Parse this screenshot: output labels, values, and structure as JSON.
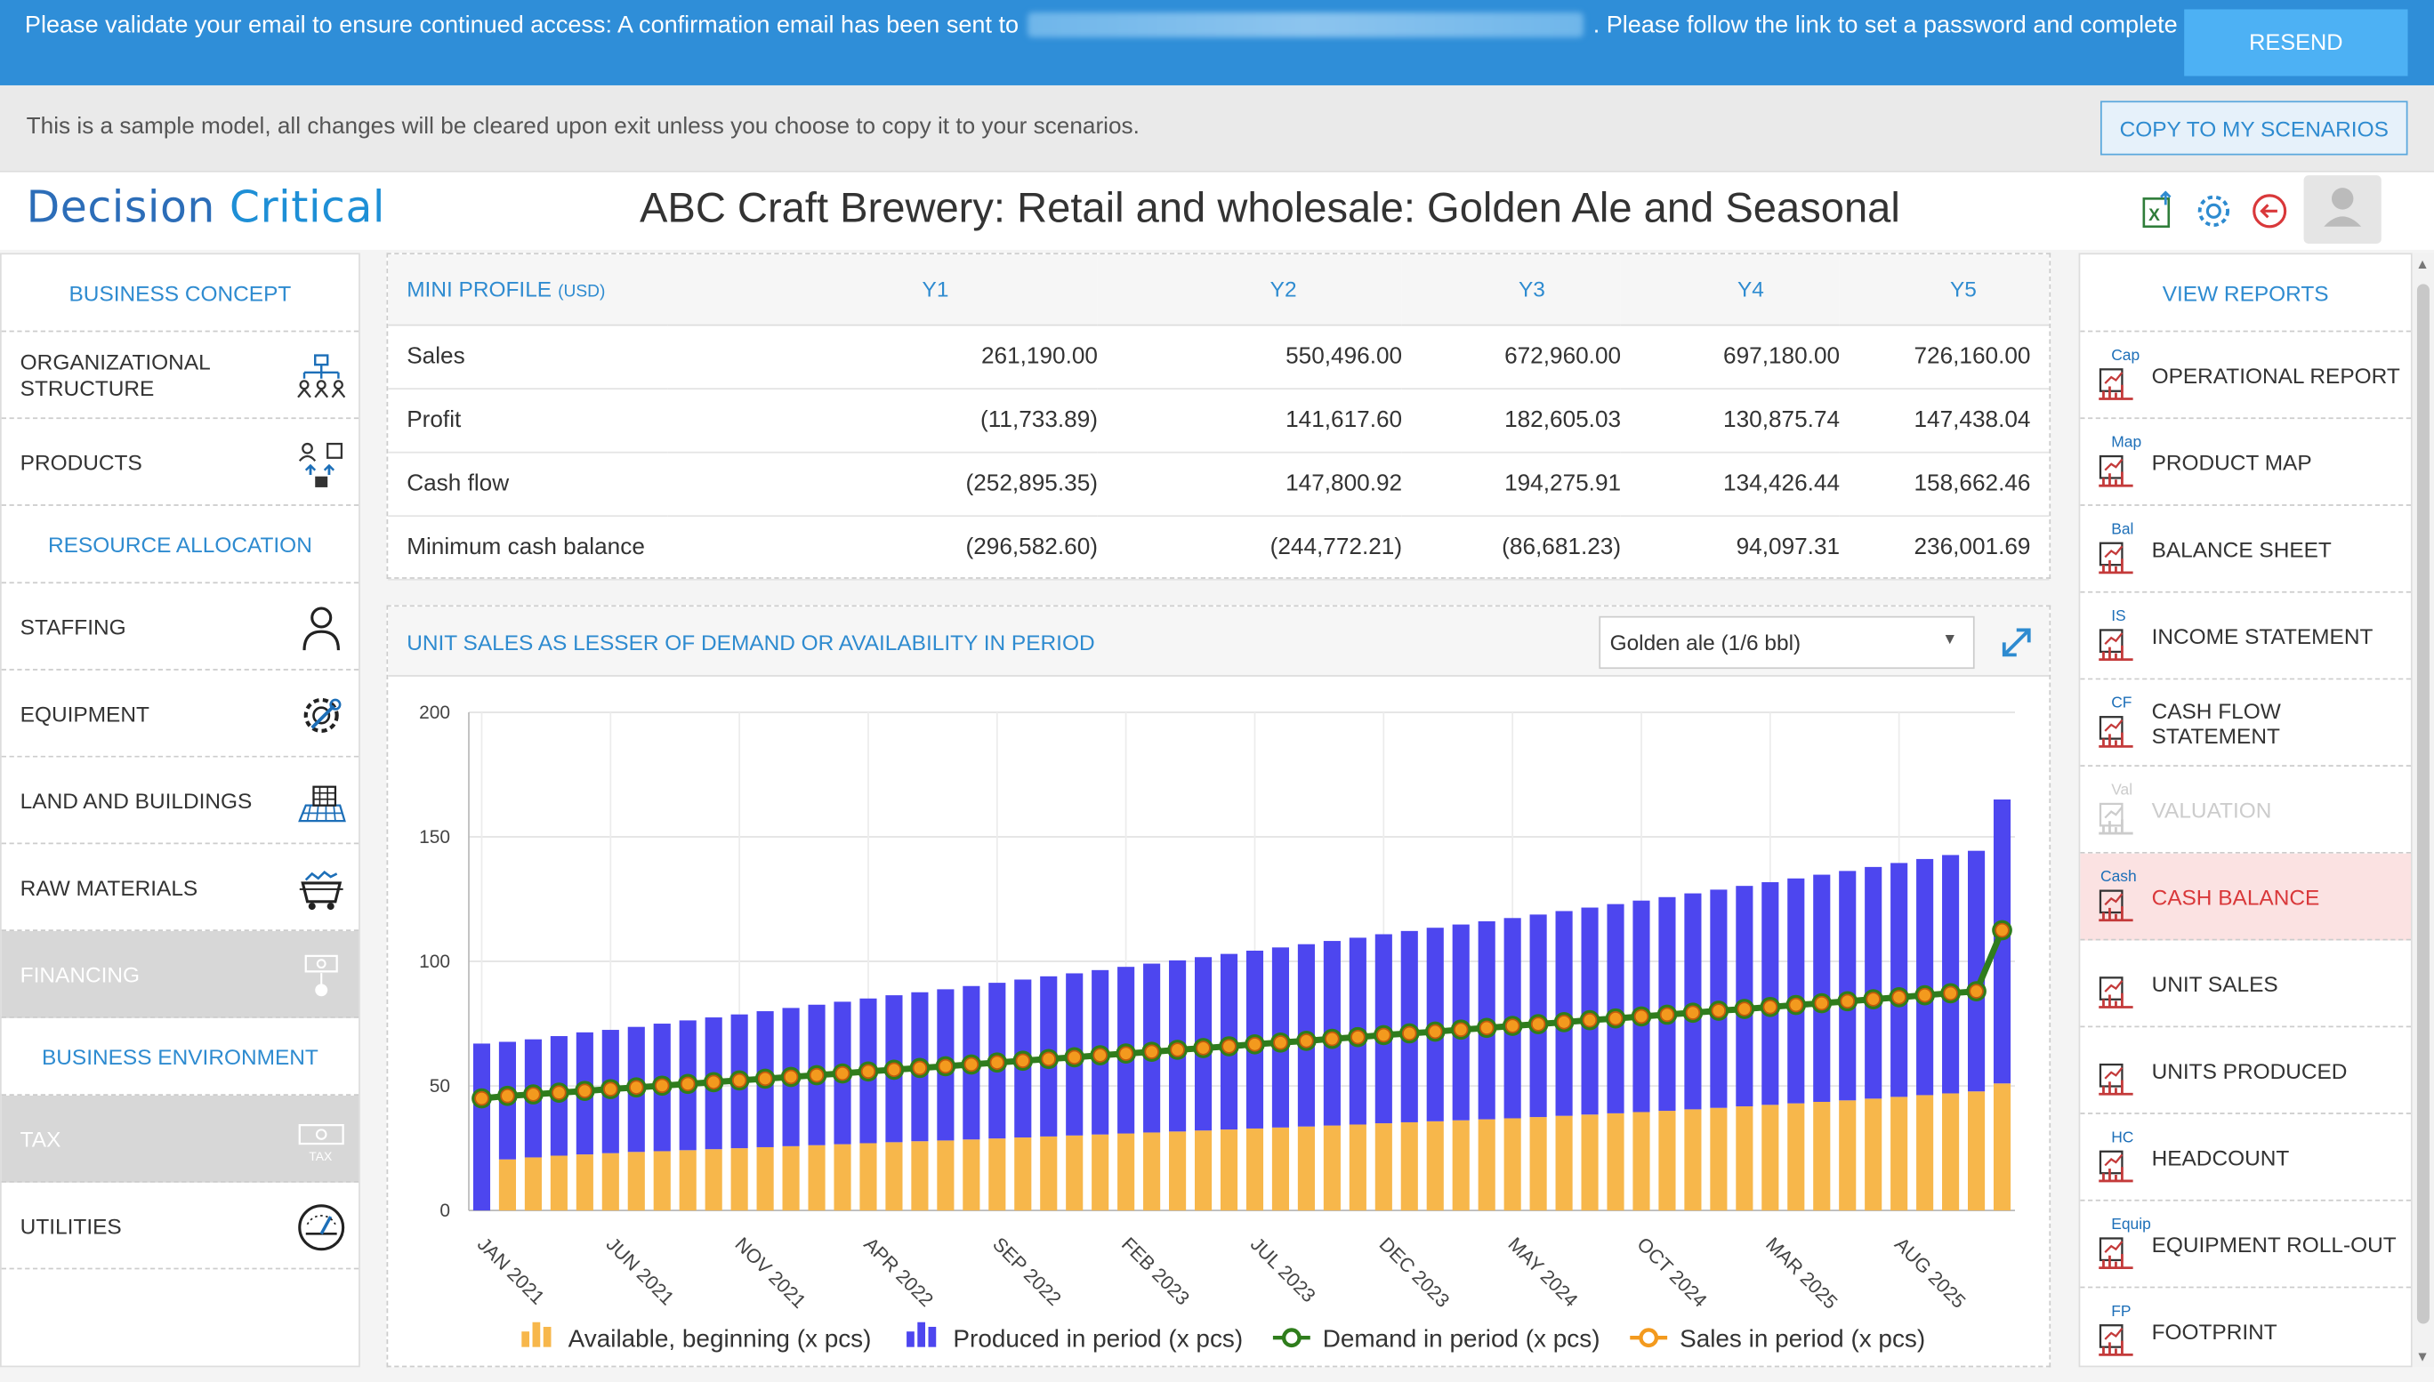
{
  "banner": {
    "text_before": "Please validate your email to ensure continued access: A confirmation email has been sent to",
    "text_after": ". Please follow the link to set a password and complete registration.",
    "resend_label": "RESEND"
  },
  "sample_bar": {
    "text": "This is a sample model, all changes will be cleared upon exit unless you choose to copy it to your scenarios.",
    "copy_label": "COPY TO MY SCENARIOS"
  },
  "header": {
    "logo_part1": "Decision",
    "logo_part2": "Critical",
    "title": "ABC Craft Brewery: Retail and wholesale: Golden Ale and Seasonal",
    "icons": [
      "excel-export-icon",
      "settings-gear-icon",
      "back-arrow-icon",
      "user-avatar-icon"
    ]
  },
  "left_nav": {
    "business_concept": "BUSINESS CONCEPT",
    "organizational_structure": "ORGANIZATIONAL STRUCTURE",
    "products": "PRODUCTS",
    "resource_allocation": "RESOURCE ALLOCATION",
    "staffing": "STAFFING",
    "equipment": "EQUIPMENT",
    "land_buildings": "LAND AND BUILDINGS",
    "raw_materials": "RAW MATERIALS",
    "financing": "FINANCING",
    "business_environment": "BUSINESS ENVIRONMENT",
    "tax": "TAX",
    "tax_icon_text": "TAX",
    "utilities": "UTILITIES"
  },
  "mini_profile": {
    "title": "MINI PROFILE",
    "currency": "(USD)",
    "years": [
      "Y1",
      "Y2",
      "Y3",
      "Y4",
      "Y5"
    ],
    "rows": [
      {
        "label": "Sales",
        "values": [
          "261,190.00",
          "550,496.00",
          "672,960.00",
          "697,180.00",
          "726,160.00"
        ]
      },
      {
        "label": "Profit",
        "values": [
          "(11,733.89)",
          "141,617.60",
          "182,605.03",
          "130,875.74",
          "147,438.04"
        ]
      },
      {
        "label": "Cash flow",
        "values": [
          "(252,895.35)",
          "147,800.92",
          "194,275.91",
          "134,426.44",
          "158,662.46"
        ]
      },
      {
        "label": "Minimum cash balance",
        "values": [
          "(296,582.60)",
          "(244,772.21)",
          "(86,681.23)",
          "94,097.31",
          "236,001.69"
        ]
      }
    ]
  },
  "chart_panel": {
    "title": "UNIT SALES AS LESSER OF DEMAND OR AVAILABILITY IN PERIOD",
    "product_select": "Golden ale (1/6 bbl)"
  },
  "chart_data": {
    "type": "bar",
    "stacked": true,
    "months": 60,
    "start": "JAN 2021",
    "tick_labels": [
      "JAN 2021",
      "JUN 2021",
      "NOV 2021",
      "APR 2022",
      "SEP 2022",
      "FEB 2023",
      "JUL 2023",
      "DEC 2023",
      "MAY 2024",
      "OCT 2024",
      "MAR 2025",
      "AUG 2025"
    ],
    "ylim": [
      0,
      200
    ],
    "yticks": [
      0,
      50,
      100,
      150,
      200
    ],
    "grid": true,
    "legend_position": "bottom",
    "series": [
      {
        "name": "Available, beginning (x pcs)",
        "kind": "bar",
        "color": "#f7b74b",
        "values": [
          0,
          20.5,
          21.3,
          22.0,
          22.5,
          23.0,
          23.5,
          23.8,
          24.2,
          24.6,
          25.0,
          25.4,
          25.8,
          26.2,
          26.6,
          27.0,
          27.4,
          27.8,
          28.1,
          28.5,
          28.9,
          29.3,
          29.7,
          30.1,
          30.5,
          30.9,
          31.3,
          31.7,
          32.1,
          32.5,
          32.9,
          33.3,
          33.7,
          34.1,
          34.5,
          35.0,
          35.4,
          35.8,
          36.2,
          36.6,
          37.0,
          37.5,
          38.0,
          38.5,
          39.0,
          39.5,
          40.0,
          40.6,
          41.2,
          41.8,
          42.4,
          43.0,
          43.6,
          44.2,
          44.9,
          45.6,
          46.3,
          47.0,
          47.8,
          51.0
        ]
      },
      {
        "name": "Produced in period (x pcs)",
        "kind": "bar",
        "color": "#4d46ef",
        "values": [
          67.0,
          47.2,
          47.4,
          48.0,
          49.0,
          49.5,
          50.2,
          51.2,
          52.1,
          52.9,
          53.7,
          54.6,
          55.5,
          56.4,
          57.2,
          58.1,
          59.0,
          59.8,
          60.7,
          61.6,
          62.5,
          63.4,
          64.3,
          65.1,
          66.0,
          66.9,
          67.8,
          68.7,
          69.6,
          70.5,
          71.4,
          72.3,
          73.2,
          74.1,
          75.0,
          75.9,
          76.8,
          77.7,
          78.6,
          79.5,
          80.4,
          81.3,
          82.2,
          83.1,
          84.0,
          84.9,
          85.8,
          86.7,
          87.6,
          88.5,
          89.4,
          90.3,
          91.2,
          92.1,
          93.0,
          93.9,
          94.8,
          95.7,
          96.6,
          114.0
        ]
      },
      {
        "name": "Demand in period (x pcs)",
        "kind": "line",
        "color": "#2f7d1c",
        "values": [
          45.0,
          46.0,
          46.6,
          47.3,
          48.0,
          48.7,
          49.4,
          50.1,
          50.8,
          51.5,
          52.2,
          52.9,
          53.6,
          54.3,
          55.0,
          55.8,
          56.5,
          57.2,
          57.9,
          58.6,
          59.4,
          60.1,
          60.8,
          61.5,
          62.3,
          63.0,
          63.7,
          64.5,
          65.2,
          65.9,
          66.7,
          67.4,
          68.1,
          68.9,
          69.6,
          70.4,
          71.1,
          71.8,
          72.6,
          73.3,
          74.1,
          74.8,
          75.6,
          76.4,
          77.1,
          77.9,
          78.6,
          79.4,
          80.2,
          80.9,
          81.7,
          82.5,
          83.2,
          84.0,
          84.8,
          85.6,
          86.4,
          87.2,
          88.0,
          112.5
        ]
      },
      {
        "name": "Sales in period (x pcs)",
        "kind": "line",
        "color": "#f39a1e",
        "values": [
          45.0,
          46.0,
          46.6,
          47.3,
          48.0,
          48.7,
          49.4,
          50.1,
          50.8,
          51.5,
          52.2,
          52.9,
          53.6,
          54.3,
          55.0,
          55.8,
          56.5,
          57.2,
          57.9,
          58.6,
          59.4,
          60.1,
          60.8,
          61.5,
          62.3,
          63.0,
          63.7,
          64.5,
          65.2,
          65.9,
          66.7,
          67.4,
          68.1,
          68.9,
          69.6,
          70.4,
          71.1,
          71.8,
          72.6,
          73.3,
          74.1,
          74.8,
          75.6,
          76.4,
          77.1,
          77.9,
          78.6,
          79.4,
          80.2,
          80.9,
          81.7,
          82.5,
          83.2,
          84.0,
          84.8,
          85.6,
          86.4,
          87.2,
          88.0,
          112.5
        ]
      }
    ]
  },
  "right_nav": {
    "title": "VIEW REPORTS",
    "items": [
      {
        "tag": "Cap",
        "label": "OPERATIONAL REPORT",
        "state": "normal"
      },
      {
        "tag": "Map",
        "label": "PRODUCT MAP",
        "state": "normal"
      },
      {
        "tag": "Bal",
        "label": "BALANCE SHEET",
        "state": "normal"
      },
      {
        "tag": "IS",
        "label": "INCOME STATEMENT",
        "state": "normal"
      },
      {
        "tag": "CF",
        "label": "CASH FLOW STATEMENT",
        "state": "normal"
      },
      {
        "tag": "Val",
        "label": "VALUATION",
        "state": "disabled"
      },
      {
        "tag": "Cash",
        "label": "CASH BALANCE",
        "state": "active"
      },
      {
        "tag": "",
        "label": "UNIT SALES",
        "state": "normal"
      },
      {
        "tag": "",
        "label": "UNITS PRODUCED",
        "state": "normal"
      },
      {
        "tag": "HC",
        "label": "HEADCOUNT",
        "state": "normal"
      },
      {
        "tag": "Equip",
        "label": "EQUIPMENT ROLL-OUT",
        "state": "normal"
      },
      {
        "tag": "FP",
        "label": "FOOTPRINT",
        "state": "normal"
      }
    ]
  }
}
